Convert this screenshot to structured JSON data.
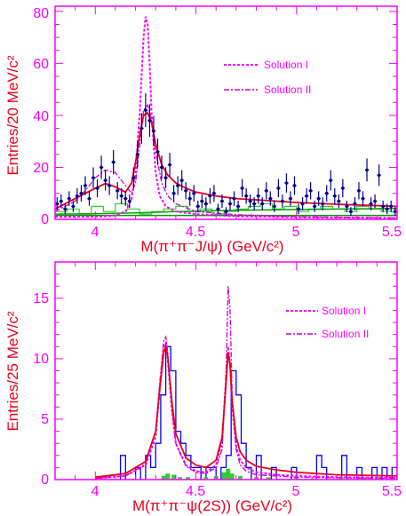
{
  "colors": {
    "axis": "#ff00ff",
    "fit": "#e8001c",
    "data": "#00008b",
    "solution_i": "#ff00ff",
    "solution_ii": "#cc00cc",
    "background": "#00a000",
    "sideband": "#33cc33",
    "hist_blue": "#0000ff"
  },
  "chart_data": [
    {
      "type": "scatter",
      "xlabel": "M(π⁺π⁻J/ψ) (GeV/c²)",
      "ylabel": "Entries/20 MeV/c²",
      "xlim": [
        3.8,
        5.5
      ],
      "ylim": [
        0,
        82
      ],
      "x_ticks": [
        "4",
        "4.5",
        "5",
        "5.5"
      ],
      "y_ticks": [
        "0",
        "20",
        "40",
        "60",
        "80"
      ],
      "legend_position": "top-right",
      "legend": [
        {
          "label": "Solution I",
          "style": "dashed"
        },
        {
          "label": "Solution II",
          "style": "dash-dot"
        }
      ],
      "points": {
        "x": [
          3.81,
          3.83,
          3.85,
          3.87,
          3.89,
          3.91,
          3.93,
          3.95,
          3.97,
          3.99,
          4.01,
          4.03,
          4.05,
          4.07,
          4.09,
          4.11,
          4.13,
          4.15,
          4.17,
          4.19,
          4.21,
          4.23,
          4.25,
          4.27,
          4.29,
          4.31,
          4.33,
          4.35,
          4.37,
          4.39,
          4.41,
          4.43,
          4.45,
          4.47,
          4.49,
          4.51,
          4.53,
          4.55,
          4.57,
          4.59,
          4.61,
          4.63,
          4.65,
          4.67,
          4.69,
          4.71,
          4.73,
          4.75,
          4.77,
          4.79,
          4.81,
          4.83,
          4.85,
          4.87,
          4.89,
          4.91,
          4.93,
          4.95,
          4.97,
          4.99,
          5.01,
          5.03,
          5.05,
          5.07,
          5.09,
          5.11,
          5.13,
          5.15,
          5.17,
          5.19,
          5.21,
          5.23,
          5.25,
          5.27,
          5.29,
          5.31,
          5.33,
          5.35,
          5.37,
          5.39,
          5.41,
          5.43,
          5.45,
          5.47,
          5.49
        ],
        "y": [
          6,
          7,
          4,
          8,
          5,
          9,
          10,
          13,
          8,
          16,
          12,
          20,
          15,
          13,
          22,
          11,
          9,
          8,
          7,
          16,
          25,
          35,
          42,
          38,
          34,
          26,
          20,
          16,
          21,
          10,
          13,
          15,
          11,
          8,
          10,
          5,
          7,
          6,
          9,
          10,
          4,
          7,
          3,
          6,
          8,
          5,
          12,
          9,
          7,
          6,
          9,
          6,
          11,
          8,
          5,
          12,
          7,
          14,
          8,
          13,
          4,
          6,
          9,
          11,
          5,
          8,
          6,
          10,
          15,
          9,
          7,
          12,
          5,
          3,
          6,
          11,
          8,
          19,
          6,
          7,
          17,
          5,
          4,
          5,
          3
        ],
        "errors": [
          2.5,
          2.6,
          2,
          2.8,
          2.2,
          3,
          3.2,
          3.6,
          2.8,
          4,
          3.5,
          4.5,
          3.9,
          3.6,
          4.7,
          3.3,
          3,
          2.8,
          2.6,
          4,
          5,
          5.9,
          6.5,
          6.2,
          5.8,
          5.1,
          4.5,
          4,
          4.6,
          3.2,
          3.6,
          3.9,
          3.3,
          2.8,
          3.2,
          2.2,
          2.6,
          2.5,
          3,
          3.2,
          2,
          2.6,
          1.7,
          2.5,
          2.8,
          2.2,
          3.5,
          3,
          2.6,
          2.5,
          3,
          2.5,
          3.3,
          2.8,
          2.2,
          3.5,
          2.6,
          3.7,
          2.8,
          3.6,
          2,
          2.5,
          3,
          3.3,
          2.2,
          2.8,
          2.5,
          3.2,
          3.9,
          3,
          2.6,
          3.5,
          2.2,
          1.7,
          2.5,
          3.3,
          2.8,
          4.4,
          2.5,
          2.6,
          4.1,
          2.2,
          2,
          2.2,
          1.7
        ]
      },
      "curves": {
        "fit_total": {
          "x": [
            3.8,
            3.9,
            3.95,
            4.0,
            4.05,
            4.1,
            4.15,
            4.18,
            4.2,
            4.22,
            4.24,
            4.26,
            4.28,
            4.3,
            4.33,
            4.36,
            4.4,
            4.45,
            4.5,
            4.6,
            4.7,
            4.8,
            5.0,
            5.2,
            5.5
          ],
          "y": [
            4,
            8,
            10,
            12,
            13.8,
            12.5,
            10.5,
            14,
            22,
            32,
            40,
            41,
            37,
            29,
            21,
            17,
            14,
            12,
            10.5,
            9,
            8,
            7.5,
            6.5,
            5.8,
            5
          ]
        },
        "solution_i": {
          "x": [
            3.8,
            4.0,
            4.1,
            4.15,
            4.18,
            4.2,
            4.22,
            4.24,
            4.25,
            4.26,
            4.27,
            4.28,
            4.3,
            4.32,
            4.35,
            4.4,
            4.5,
            4.7,
            5.0,
            5.5
          ],
          "y": [
            1,
            1,
            1.5,
            3,
            8,
            18,
            40,
            70,
            78,
            75,
            60,
            40,
            18,
            9,
            5,
            3,
            2,
            1.2,
            0.8,
            0.5
          ]
        },
        "solution_ii": {
          "x": [
            3.8,
            3.9,
            3.95,
            4.0,
            4.05,
            4.1,
            4.15,
            4.18,
            4.2,
            4.22,
            4.24,
            4.26,
            4.28,
            4.3,
            4.33,
            4.36,
            4.4,
            4.5,
            4.7,
            5.0,
            5.5
          ],
          "y": [
            3,
            7,
            11,
            16,
            19,
            18,
            13,
            10,
            14,
            28,
            42,
            44,
            38,
            26,
            14,
            9,
            6,
            3,
            1.8,
            1,
            0.6
          ]
        },
        "background_flat": {
          "x": [
            3.8,
            5.5
          ],
          "y": [
            1.5,
            1.5
          ]
        },
        "background_rising": {
          "x": [
            3.8,
            4.0,
            4.2,
            4.4,
            4.7,
            5.0,
            5.5
          ],
          "y": [
            2,
            2.2,
            2.5,
            3,
            3.5,
            3.8,
            4.2
          ]
        }
      },
      "sideband_histogram": {
        "edges": [
          3.8,
          3.86,
          3.92,
          3.98,
          4.04,
          4.1,
          4.16,
          4.22,
          4.28,
          4.34,
          4.4,
          4.46,
          4.52,
          4.58,
          4.64,
          4.7,
          4.76,
          4.82,
          4.88,
          4.94,
          5.0,
          5.06,
          5.12,
          5.18,
          5.24,
          5.3,
          5.36,
          5.42,
          5.5
        ],
        "values": [
          3,
          4,
          2,
          5,
          3,
          6,
          4,
          2,
          3,
          4,
          5,
          3,
          4,
          2,
          3,
          4,
          5,
          6,
          4,
          5,
          3,
          4,
          5,
          4,
          3,
          5,
          4,
          3
        ]
      }
    },
    {
      "type": "scatter",
      "xlabel": "M(π⁺π⁻ψ(2S)) (GeV/c²)",
      "ylabel": "Entries/25 MeV/c²",
      "xlim": [
        3.8,
        5.5
      ],
      "ylim": [
        0,
        18
      ],
      "x_ticks": [
        "4",
        "4.5",
        "5",
        "5.5"
      ],
      "y_ticks": [
        "0",
        "5",
        "10",
        "15"
      ],
      "legend_position": "top-right",
      "legend": [
        {
          "label": "Solution I",
          "style": "dashed"
        },
        {
          "label": "Solution II",
          "style": "dash-dot"
        }
      ],
      "data_histogram": {
        "edges": [
          4.0,
          4.025,
          4.05,
          4.075,
          4.1,
          4.125,
          4.15,
          4.175,
          4.2,
          4.225,
          4.25,
          4.275,
          4.3,
          4.325,
          4.35,
          4.375,
          4.4,
          4.425,
          4.45,
          4.475,
          4.5,
          4.525,
          4.55,
          4.575,
          4.6,
          4.625,
          4.65,
          4.675,
          4.7,
          4.725,
          4.75,
          4.775,
          4.8,
          4.825,
          4.85,
          4.875,
          4.9,
          4.925,
          4.95,
          4.975,
          5.0,
          5.025,
          5.05,
          5.075,
          5.1,
          5.125,
          5.15,
          5.175,
          5.2,
          5.225,
          5.25,
          5.275,
          5.3,
          5.325,
          5.35,
          5.375,
          5.4,
          5.425,
          5.45,
          5.475,
          5.5
        ],
        "values": [
          0,
          0,
          0,
          0,
          0,
          2,
          0,
          0,
          1,
          0,
          2,
          1,
          3,
          7,
          11,
          9,
          4,
          3,
          2,
          1,
          1,
          0,
          1,
          1,
          0,
          1,
          2,
          9,
          7,
          3,
          1,
          0,
          2,
          0,
          0,
          1,
          0,
          0,
          0,
          1,
          0,
          0,
          0,
          0,
          2,
          1,
          0,
          0,
          0,
          2,
          0,
          0,
          1,
          0,
          0,
          1,
          0,
          1,
          0,
          1
        ]
      },
      "curves": {
        "fit_total": {
          "x": [
            4.0,
            4.15,
            4.25,
            4.3,
            4.32,
            4.34,
            4.35,
            4.36,
            4.38,
            4.4,
            4.45,
            4.5,
            4.55,
            4.6,
            4.63,
            4.65,
            4.66,
            4.67,
            4.68,
            4.7,
            4.72,
            4.75,
            4.8,
            4.9,
            5.0,
            5.2,
            5.5
          ],
          "y": [
            0.2,
            0.5,
            1.5,
            4,
            7.5,
            10.5,
            11,
            10.2,
            6.5,
            3.8,
            1.8,
            1.2,
            1,
            1.6,
            3.5,
            8,
            10.5,
            9.5,
            6.5,
            3.5,
            2.3,
            1.6,
            1.1,
            0.8,
            0.6,
            0.4,
            0.3
          ]
        },
        "solution_i": {
          "x": [
            4.0,
            4.15,
            4.25,
            4.3,
            4.32,
            4.34,
            4.35,
            4.36,
            4.38,
            4.4,
            4.45,
            4.5,
            4.55,
            4.6,
            4.63,
            4.65,
            4.66,
            4.67,
            4.68,
            4.7,
            4.72,
            4.75,
            4.8,
            4.9,
            5.0,
            5.2,
            5.5
          ],
          "y": [
            0.1,
            0.3,
            1.2,
            3.5,
            7.5,
            11,
            11.3,
            10,
            5.8,
            3,
            1.2,
            0.7,
            0.6,
            1.2,
            3.2,
            8.5,
            11,
            9.5,
            6,
            2.8,
            1.6,
            1,
            0.6,
            0.4,
            0.3,
            0.2,
            0.15
          ]
        },
        "solution_ii": {
          "x": [
            4.0,
            4.15,
            4.25,
            4.3,
            4.32,
            4.34,
            4.35,
            4.36,
            4.38,
            4.4,
            4.45,
            4.5,
            4.55,
            4.6,
            4.63,
            4.65,
            4.66,
            4.67,
            4.68,
            4.7,
            4.72,
            4.75,
            4.8,
            4.9,
            5.0,
            5.2,
            5.5
          ],
          "y": [
            0.1,
            0.3,
            1.3,
            4,
            8,
            11.5,
            11.8,
            10.5,
            6,
            3,
            1.1,
            0.6,
            0.5,
            1,
            2.5,
            9,
            16,
            14,
            7,
            2.5,
            1.2,
            0.7,
            0.4,
            0.3,
            0.2,
            0.15,
            0.1
          ]
        }
      },
      "background_bins": {
        "x": [
          4.34,
          4.36,
          4.39,
          4.42,
          4.46,
          4.55,
          4.6,
          4.64,
          4.66,
          4.68,
          4.72,
          4.8,
          4.86,
          5.0,
          5.08,
          5.22,
          5.34,
          5.4
        ],
        "y": [
          0.3,
          0.5,
          0.4,
          0.2,
          0.2,
          0.2,
          0.3,
          0.6,
          0.9,
          0.5,
          0.3,
          0.2,
          0.2,
          0.2,
          0.1,
          0.2,
          0.1,
          0.2
        ]
      }
    }
  ]
}
